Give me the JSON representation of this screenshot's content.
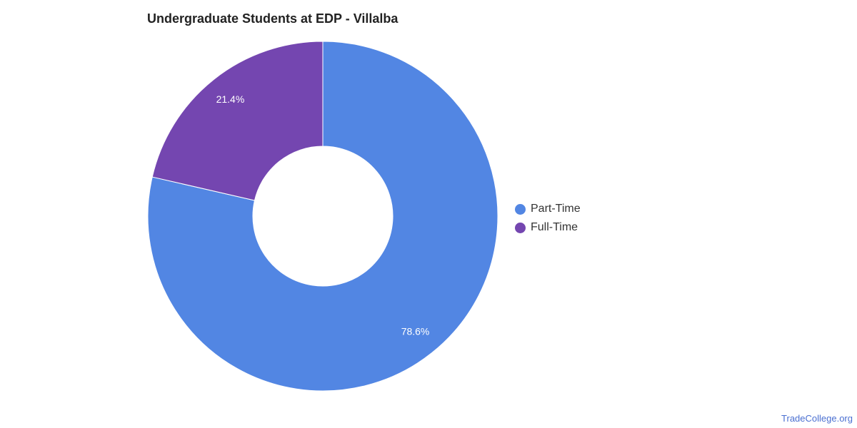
{
  "chart_data": {
    "type": "pie",
    "variant": "donut",
    "title": "Undergraduate Students at EDP - Villalba",
    "slices": [
      {
        "label": "Part-Time",
        "value": 78.6,
        "display": "78.6%",
        "color": "#5286e3"
      },
      {
        "label": "Full-Time",
        "value": 21.4,
        "display": "21.4%",
        "color": "#7446b0"
      }
    ],
    "legend_position": "right"
  },
  "source": {
    "label": "TradeCollege.org"
  }
}
